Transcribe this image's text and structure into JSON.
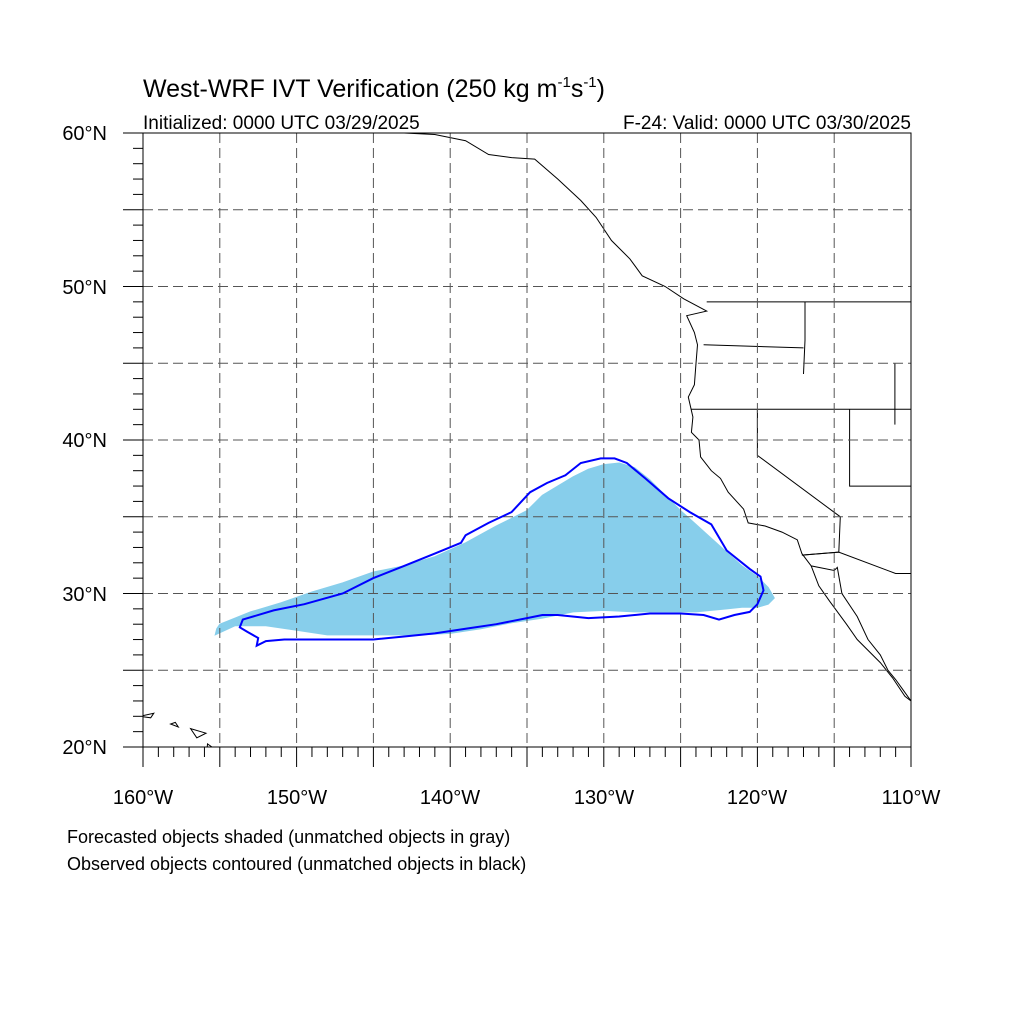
{
  "title": {
    "main": "West-WRF IVT Verification (250 kg m",
    "sup1": "-1",
    "mid": "s",
    "sup2": "-1",
    "end": ")"
  },
  "init_label": "Initialized: 0000 UTC 03/29/2025",
  "valid_label": "F-24: Valid: 0000 UTC 03/30/2025",
  "lat_labels": [
    "60°N",
    "50°N",
    "40°N",
    "30°N",
    "20°N"
  ],
  "lon_labels": [
    "160°W",
    "150°W",
    "140°W",
    "130°W",
    "120°W",
    "110°W"
  ],
  "caption": [
    "Forecasted objects shaded (unmatched objects in gray)",
    "Observed objects contoured (unmatched objects in black)"
  ],
  "map": {
    "lon_range": [
      -160,
      -110
    ],
    "lat_range": [
      20,
      60
    ],
    "projection": "cylindrical equidistant",
    "grid": "dashed, every 5 degrees",
    "forecast_fill_color": "#87CEEB",
    "observed_contour_color": "#0000FF",
    "coast_color": "#000000"
  },
  "chart_data": {
    "type": "map",
    "forecast_object": [
      [
        -155,
        28.0
      ],
      [
        -153,
        28.8
      ],
      [
        -151,
        29.4
      ],
      [
        -149,
        30.1
      ],
      [
        -147,
        30.7
      ],
      [
        -145,
        31.4
      ],
      [
        -143,
        31.8
      ],
      [
        -141,
        32.4
      ],
      [
        -139,
        33.3
      ],
      [
        -137,
        34.4
      ],
      [
        -135,
        35.4
      ],
      [
        -134,
        36.4
      ],
      [
        -133,
        37.0
      ],
      [
        -132,
        37.6
      ],
      [
        -131,
        38.1
      ],
      [
        -130,
        38.4
      ],
      [
        -129,
        38.5
      ],
      [
        -128,
        38.2
      ],
      [
        -127,
        37.4
      ],
      [
        -126,
        36.4
      ],
      [
        -125,
        35.4
      ],
      [
        -124,
        34.5
      ],
      [
        -123,
        33.6
      ],
      [
        -122,
        32.7
      ],
      [
        -121,
        31.8
      ],
      [
        -120,
        31.1
      ],
      [
        -119.3,
        30.4
      ],
      [
        -118.9,
        29.7
      ],
      [
        -119.3,
        29.3
      ],
      [
        -120,
        29.1
      ],
      [
        -121,
        29.1
      ],
      [
        -122,
        29.0
      ],
      [
        -124,
        28.8
      ],
      [
        -126,
        28.8
      ],
      [
        -128,
        28.8
      ],
      [
        -130,
        28.9
      ],
      [
        -132,
        28.8
      ],
      [
        -134,
        28.4
      ],
      [
        -136,
        28.1
      ],
      [
        -138,
        27.7
      ],
      [
        -140,
        27.4
      ],
      [
        -142,
        27.3
      ],
      [
        -144,
        27.3
      ],
      [
        -146,
        27.3
      ],
      [
        -148,
        27.3
      ],
      [
        -150,
        27.6
      ],
      [
        -152,
        27.9
      ],
      [
        -154,
        27.9
      ],
      [
        -155.3,
        27.3
      ],
      [
        -155.2,
        27.7
      ]
    ],
    "observed_object": [
      [
        -153.7,
        27.8
      ],
      [
        -153.5,
        28.3
      ],
      [
        -151.5,
        28.9
      ],
      [
        -149.5,
        29.3
      ],
      [
        -147,
        30.0
      ],
      [
        -145,
        31.0
      ],
      [
        -143,
        31.8
      ],
      [
        -141,
        32.6
      ],
      [
        -139.3,
        33.3
      ],
      [
        -139.0,
        33.8
      ],
      [
        -137.5,
        34.6
      ],
      [
        -136,
        35.3
      ],
      [
        -134.8,
        36.6
      ],
      [
        -133.7,
        37.2
      ],
      [
        -132.5,
        37.7
      ],
      [
        -131.5,
        38.5
      ],
      [
        -130.2,
        38.8
      ],
      [
        -129.3,
        38.8
      ],
      [
        -128.5,
        38.5
      ],
      [
        -127.3,
        37.5
      ],
      [
        -125.8,
        36.2
      ],
      [
        -124.4,
        35.3
      ],
      [
        -123.0,
        34.5
      ],
      [
        -122.0,
        32.8
      ],
      [
        -120.5,
        31.6
      ],
      [
        -119.8,
        31.1
      ],
      [
        -119.6,
        30.2
      ],
      [
        -120,
        29.3
      ],
      [
        -120.5,
        28.8
      ],
      [
        -121.5,
        28.6
      ],
      [
        -122.5,
        28.3
      ],
      [
        -123.5,
        28.6
      ],
      [
        -125,
        28.7
      ],
      [
        -127,
        28.7
      ],
      [
        -129,
        28.5
      ],
      [
        -131,
        28.4
      ],
      [
        -133,
        28.6
      ],
      [
        -134,
        28.6
      ],
      [
        -135,
        28.4
      ],
      [
        -137,
        28.0
      ],
      [
        -139,
        27.7
      ],
      [
        -141,
        27.4
      ],
      [
        -143,
        27.2
      ],
      [
        -145,
        27.0
      ],
      [
        -147,
        27.0
      ],
      [
        -149,
        27.0
      ],
      [
        -150.8,
        27.0
      ],
      [
        -152,
        26.9
      ],
      [
        -152.6,
        26.6
      ],
      [
        -152.5,
        27.1
      ],
      [
        -153.2,
        27.5
      ],
      [
        -153.7,
        27.8
      ]
    ],
    "coastline": [
      [
        -110,
        23.0
      ],
      [
        -110.5,
        23.7
      ],
      [
        -111,
        24.4
      ],
      [
        -111.5,
        25.0
      ],
      [
        -112.0,
        26.0
      ],
      [
        -112.8,
        27.0
      ],
      [
        -113.5,
        28.5
      ],
      [
        -114.5,
        30.0
      ],
      [
        -114.8,
        31.7
      ],
      [
        -115,
        31.5
      ],
      [
        -116.5,
        31.8
      ],
      [
        -117.1,
        32.6
      ],
      [
        -117.4,
        33.5
      ],
      [
        -118.4,
        34.0
      ],
      [
        -119.5,
        34.4
      ],
      [
        -120.6,
        34.6
      ],
      [
        -120.9,
        35.5
      ],
      [
        -121.9,
        36.6
      ],
      [
        -122.4,
        37.5
      ],
      [
        -123.0,
        38.0
      ],
      [
        -123.7,
        38.9
      ],
      [
        -123.8,
        40.0
      ],
      [
        -124.3,
        40.5
      ],
      [
        -124.2,
        41.5
      ],
      [
        -124.5,
        42.8
      ],
      [
        -124.1,
        43.6
      ],
      [
        -124.0,
        45.0
      ],
      [
        -123.9,
        46.2
      ],
      [
        -124.1,
        47.0
      ],
      [
        -124.6,
        48.1
      ],
      [
        -123.3,
        48.4
      ],
      [
        -124.8,
        49.2
      ],
      [
        -126.0,
        50.0
      ],
      [
        -127.5,
        50.7
      ],
      [
        -128.3,
        51.8
      ],
      [
        -129.5,
        53.0
      ],
      [
        -130.5,
        54.5
      ],
      [
        -131.5,
        55.6
      ],
      [
        -133.0,
        57.0
      ],
      [
        -134.5,
        58.3
      ],
      [
        -136.0,
        58.4
      ],
      [
        -137.5,
        58.6
      ],
      [
        -139.0,
        59.5
      ],
      [
        -141.0,
        59.9
      ],
      [
        -143.0,
        60.0
      ]
    ],
    "baja_west_coast": [
      [
        -116.5,
        31.8
      ],
      [
        -116.0,
        30.5
      ],
      [
        -115.3,
        29.5
      ],
      [
        -114.2,
        28.0
      ],
      [
        -113.5,
        27.0
      ],
      [
        -112.0,
        25.5
      ],
      [
        -111.2,
        24.5
      ],
      [
        -110.4,
        23.3
      ],
      [
        -110,
        23.0
      ]
    ],
    "borders": [
      [
        [
          -123.3,
          49.0
        ],
        [
          -110,
          49.0
        ]
      ],
      [
        [
          -124.3,
          42.0
        ],
        [
          -110,
          42.0
        ]
      ],
      [
        [
          -120,
          42.0
        ],
        [
          -120,
          39.0
        ],
        [
          -114.6,
          35.0
        ],
        [
          -114.7,
          32.7
        ],
        [
          -117.1,
          32.5
        ]
      ],
      [
        [
          -116.9,
          49.0
        ],
        [
          -116.9,
          46.5
        ],
        [
          -117.0,
          44.3
        ]
      ],
      [
        [
          -111.05,
          45.0
        ],
        [
          -111.05,
          41.0
        ]
      ],
      [
        [
          -123.5,
          46.2
        ],
        [
          -117.0,
          46.0
        ]
      ],
      [
        [
          -114.0,
          42.0
        ],
        [
          -114.0,
          37.0
        ],
        [
          -110,
          37.0
        ]
      ],
      [
        [
          -117.1,
          32.5
        ],
        [
          -114.7,
          32.7
        ],
        [
          -111.0,
          31.3
        ],
        [
          -110,
          31.3
        ]
      ]
    ],
    "hawaii": [
      [
        [
          -160.2,
          22.0
        ],
        [
          -159.3,
          22.2
        ],
        [
          -159.5,
          21.9
        ]
      ],
      [
        [
          -158.2,
          21.5
        ],
        [
          -157.7,
          21.3
        ],
        [
          -157.9,
          21.6
        ]
      ],
      [
        [
          -156.9,
          21.2
        ],
        [
          -155.9,
          20.9
        ],
        [
          -156.5,
          20.6
        ]
      ],
      [
        [
          -155.8,
          20.2
        ],
        [
          -154.8,
          19.5
        ],
        [
          -155.9,
          19.0
        ]
      ]
    ]
  }
}
